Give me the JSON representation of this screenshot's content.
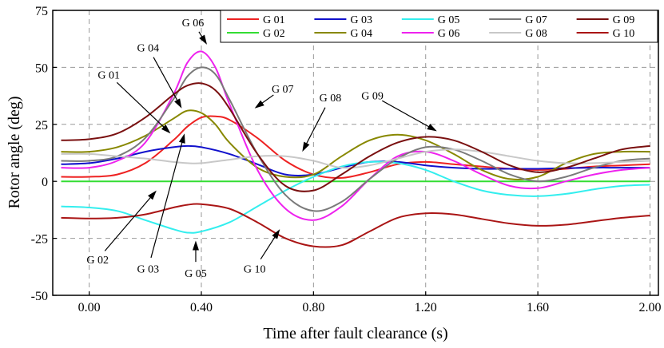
{
  "chart_data": {
    "type": "line",
    "title": "",
    "xlabel": "Time after fault clearance (s)",
    "ylabel": "Rotor angle (deg)",
    "xlim": [
      -0.13,
      2.03
    ],
    "ylim": [
      -50,
      75
    ],
    "xticks": [
      0.0,
      0.4,
      0.8,
      1.2,
      1.6,
      2.0
    ],
    "xtick_labels": [
      "0.00",
      "0.40",
      "0.80",
      "1.20",
      "1.60",
      "2.00"
    ],
    "yticks": [
      -50,
      -25,
      0,
      25,
      50,
      75
    ],
    "ytick_labels": [
      "-50",
      "-25",
      "0",
      "25",
      "50",
      "75"
    ],
    "grid": true,
    "legend_position": "top-right",
    "series": [
      {
        "name": "G 01",
        "color": "#ee2222",
        "x": [
          -0.1,
          0.0,
          0.1,
          0.2,
          0.3,
          0.35,
          0.4,
          0.45,
          0.5,
          0.6,
          0.7,
          0.8,
          0.9,
          1.0,
          1.1,
          1.2,
          1.3,
          1.4,
          1.5,
          1.6,
          1.7,
          1.8,
          1.9,
          2.0
        ],
        "y": [
          2,
          2,
          3,
          8,
          18,
          24,
          28,
          28.5,
          27,
          19,
          9,
          3,
          1.5,
          4,
          7.5,
          8.5,
          7.5,
          6.5,
          5.5,
          5,
          5.5,
          6.5,
          7,
          7.5
        ]
      },
      {
        "name": "G 02",
        "color": "#33dd33",
        "x": [
          -0.1,
          2.0
        ],
        "y": [
          0,
          0
        ]
      },
      {
        "name": "G 03",
        "color": "#1111cc",
        "x": [
          -0.1,
          0.0,
          0.1,
          0.2,
          0.3,
          0.35,
          0.4,
          0.5,
          0.6,
          0.7,
          0.8,
          0.9,
          1.0,
          1.1,
          1.2,
          1.3,
          1.4,
          1.5,
          1.6,
          1.7,
          1.8,
          1.9,
          2.0
        ],
        "y": [
          7.5,
          8,
          10,
          13,
          15,
          15.5,
          15,
          12,
          7.5,
          3,
          3,
          6,
          8.5,
          8.5,
          7,
          6,
          5.5,
          5.5,
          5.5,
          5.8,
          6,
          6,
          6
        ]
      },
      {
        "name": "G 04",
        "color": "#888800",
        "x": [
          -0.1,
          0.0,
          0.1,
          0.2,
          0.3,
          0.35,
          0.4,
          0.45,
          0.5,
          0.6,
          0.7,
          0.8,
          0.9,
          1.0,
          1.1,
          1.2,
          1.3,
          1.4,
          1.5,
          1.6,
          1.7,
          1.8,
          1.9,
          2.0
        ],
        "y": [
          13,
          13,
          15,
          20,
          27.5,
          31,
          30,
          25,
          17,
          6,
          2,
          3,
          11,
          18,
          20.5,
          18,
          12,
          5,
          1,
          2,
          8,
          12,
          13,
          13
        ]
      },
      {
        "name": "G 05",
        "color": "#33eeee",
        "x": [
          -0.1,
          0.0,
          0.1,
          0.2,
          0.3,
          0.35,
          0.4,
          0.5,
          0.6,
          0.7,
          0.8,
          0.9,
          1.0,
          1.1,
          1.2,
          1.3,
          1.4,
          1.5,
          1.6,
          1.7,
          1.8,
          1.9,
          2.0
        ],
        "y": [
          -11,
          -11.5,
          -13,
          -17,
          -21,
          -22.5,
          -22,
          -18,
          -11,
          -4,
          2,
          6.5,
          8.5,
          8,
          5,
          0,
          -4,
          -6,
          -6.5,
          -5.5,
          -3.5,
          -2,
          -1.5
        ]
      },
      {
        "name": "G 06",
        "color": "#ee22ee",
        "x": [
          -0.1,
          0.0,
          0.1,
          0.2,
          0.3,
          0.35,
          0.4,
          0.45,
          0.5,
          0.6,
          0.7,
          0.8,
          0.9,
          1.0,
          1.1,
          1.2,
          1.3,
          1.4,
          1.5,
          1.6,
          1.7,
          1.8,
          1.9,
          2.0
        ],
        "y": [
          6,
          6,
          9,
          17,
          38,
          52,
          57,
          50,
          34,
          5,
          -12,
          -17,
          -11,
          1,
          11,
          13,
          9,
          3,
          -2,
          -3,
          0,
          3,
          5,
          6
        ]
      },
      {
        "name": "G 07",
        "color": "#7a7a7a",
        "x": [
          -0.1,
          0.0,
          0.1,
          0.2,
          0.3,
          0.35,
          0.4,
          0.45,
          0.5,
          0.6,
          0.7,
          0.8,
          0.9,
          1.0,
          1.1,
          1.2,
          1.3,
          1.4,
          1.5,
          1.6,
          1.7,
          1.8,
          1.9,
          2.0
        ],
        "y": [
          9,
          9,
          11,
          19,
          36,
          46,
          50,
          47,
          36,
          12,
          -6,
          -13,
          -9,
          1,
          10,
          15,
          14,
          9,
          3,
          0,
          2,
          6,
          9,
          10
        ]
      },
      {
        "name": "G 08",
        "color": "#c8c8c8",
        "x": [
          -0.1,
          0.0,
          0.1,
          0.2,
          0.3,
          0.35,
          0.4,
          0.5,
          0.6,
          0.7,
          0.8,
          0.9,
          1.0,
          1.1,
          1.2,
          1.3,
          1.4,
          1.5,
          1.6,
          1.7,
          1.8,
          1.9,
          2.0
        ],
        "y": [
          12,
          12,
          11,
          10,
          8.5,
          8,
          8,
          9.5,
          11,
          11,
          9,
          6,
          7,
          10,
          13,
          14,
          13,
          11,
          9,
          8,
          8,
          8.5,
          9
        ]
      },
      {
        "name": "G 09",
        "color": "#7a1010",
        "x": [
          -0.1,
          0.0,
          0.1,
          0.2,
          0.3,
          0.35,
          0.4,
          0.45,
          0.5,
          0.6,
          0.7,
          0.8,
          0.9,
          1.0,
          1.1,
          1.2,
          1.3,
          1.4,
          1.5,
          1.6,
          1.7,
          1.8,
          1.9,
          2.0
        ],
        "y": [
          18,
          18.5,
          21,
          28,
          38,
          42,
          43,
          40,
          32,
          12,
          -2,
          -4,
          3,
          11,
          17,
          19.5,
          18,
          13,
          7,
          4,
          6,
          10,
          14,
          15.5
        ]
      },
      {
        "name": "G 10",
        "color": "#aa1515",
        "x": [
          -0.1,
          0.0,
          0.1,
          0.2,
          0.3,
          0.35,
          0.4,
          0.5,
          0.6,
          0.7,
          0.8,
          0.9,
          1.0,
          1.1,
          1.2,
          1.3,
          1.4,
          1.5,
          1.6,
          1.7,
          1.8,
          1.9,
          2.0
        ],
        "y": [
          -16,
          -16.3,
          -16,
          -14.5,
          -11.5,
          -10.3,
          -10,
          -12,
          -18,
          -25,
          -28.5,
          -28,
          -22,
          -16,
          -14,
          -14.5,
          -16.5,
          -18.5,
          -19.5,
          -19,
          -17.5,
          -16,
          -15
        ]
      }
    ],
    "annotations": [
      {
        "label": "G 06",
        "text_x": 0.37,
        "text_y": 68,
        "arrow_to_x": 0.42,
        "arrow_to_y": 60
      },
      {
        "label": "G 04",
        "text_x": 0.21,
        "text_y": 57,
        "arrow_to_x": 0.33,
        "arrow_to_y": 32
      },
      {
        "label": "G 01",
        "text_x": 0.07,
        "text_y": 45,
        "arrow_to_x": 0.29,
        "arrow_to_y": 21
      },
      {
        "label": "G 07",
        "text_x": 0.69,
        "text_y": 39,
        "arrow_to_x": 0.59,
        "arrow_to_y": 32
      },
      {
        "label": "G 08",
        "text_x": 0.86,
        "text_y": 35,
        "arrow_to_x": 0.76,
        "arrow_to_y": 13
      },
      {
        "label": "G 09",
        "text_x": 1.01,
        "text_y": 36,
        "arrow_to_x": 1.24,
        "arrow_to_y": 22
      },
      {
        "label": "G 02",
        "text_x": 0.03,
        "text_y": -36,
        "arrow_to_x": 0.24,
        "arrow_to_y": -4
      },
      {
        "label": "G 03",
        "text_x": 0.21,
        "text_y": -40,
        "arrow_to_x": 0.34,
        "arrow_to_y": 21
      },
      {
        "label": "G 05",
        "text_x": 0.38,
        "text_y": -42,
        "arrow_to_x": 0.38,
        "arrow_to_y": -26
      },
      {
        "label": "G 10",
        "text_x": 0.59,
        "text_y": -40,
        "arrow_to_x": 0.68,
        "arrow_to_y": -21
      }
    ]
  }
}
